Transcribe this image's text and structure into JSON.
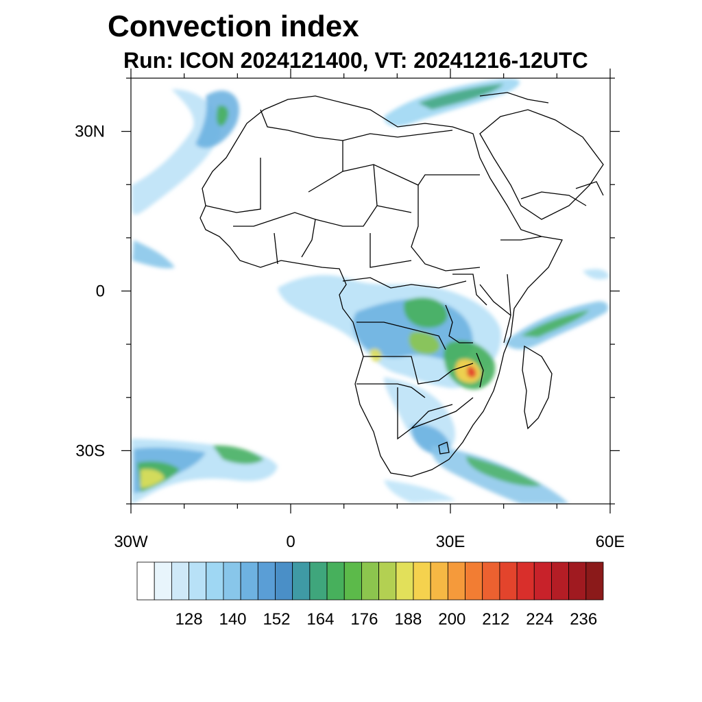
{
  "title": "Convection index",
  "subtitle": "Run: ICON 2024121400,  VT: 20241216-12UTC",
  "map": {
    "lon_range": [
      -30,
      60
    ],
    "lat_range": [
      -40,
      40
    ],
    "lat_ticks": [
      {
        "value": 30,
        "label": "30N"
      },
      {
        "value": 0,
        "label": "0"
      },
      {
        "value": -30,
        "label": "30S"
      }
    ],
    "lon_ticks": [
      {
        "value": -30,
        "label": "30W"
      },
      {
        "value": 0,
        "label": "0"
      },
      {
        "value": 30,
        "label": "30E"
      },
      {
        "value": 60,
        "label": "60E"
      }
    ]
  },
  "colorbar": {
    "labels": [
      "128",
      "140",
      "152",
      "164",
      "176",
      "188",
      "200",
      "212",
      "224",
      "236"
    ],
    "colors": [
      "#ffffff",
      "#e8f5fc",
      "#cfe9f8",
      "#b8e1f7",
      "#9fd7f3",
      "#88c6ea",
      "#6eb2e1",
      "#5a9ed6",
      "#4a8fc7",
      "#3f9aa5",
      "#3fa67c",
      "#47b05c",
      "#5cba4a",
      "#8cc54e",
      "#b3d052",
      "#e2e05a",
      "#f5d24e",
      "#f6b844",
      "#f59a3b",
      "#f27d33",
      "#ec6130",
      "#e3442c",
      "#d92f2b",
      "#c8222a",
      "#b41d25",
      "#a01a20",
      "#8b1a1a"
    ]
  }
}
